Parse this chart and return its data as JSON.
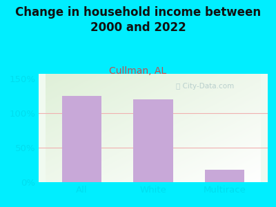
{
  "title": "Change in household income between\n2000 and 2022",
  "subtitle": "Cullman, AL",
  "categories": [
    "All",
    "White",
    "Multirace"
  ],
  "values": [
    125,
    120,
    18
  ],
  "bar_color": "#c8a8d8",
  "background_color": "#00eeff",
  "plot_bg_top_left": "#dff0d8",
  "plot_bg_bottom_right": "#f8fff8",
  "ylabel_ticks": [
    0,
    50,
    100,
    150
  ],
  "ylabel_labels": [
    "0%",
    "50%",
    "100%",
    "150%"
  ],
  "ylim": [
    0,
    158
  ],
  "title_fontsize": 12,
  "subtitle_fontsize": 10,
  "subtitle_color": "#c05050",
  "tick_label_color": "#00ddee",
  "tick_label_fontsize": 9.5,
  "watermark": " City-Data.com",
  "watermark_color": "#b0c8c8",
  "grid_color": "#f0b0b0",
  "title_color": "#111111"
}
